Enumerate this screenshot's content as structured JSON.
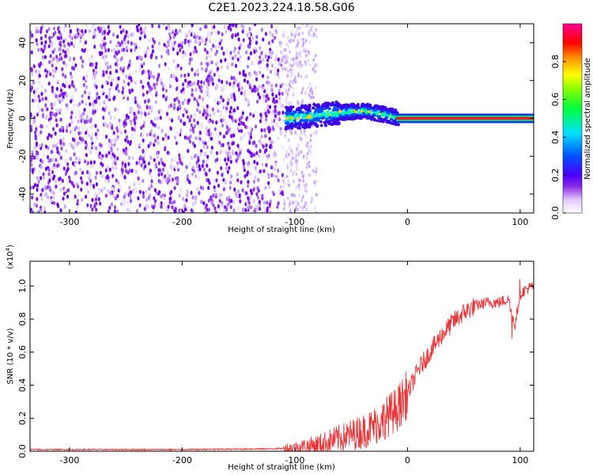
{
  "title": "C2E1.2023.224.18.58.G06",
  "chart_data": [
    {
      "type": "heatmap",
      "title": "C2E1.2023.224.18.58.G06",
      "xlabel": "Height of straight line (km)",
      "ylabel": "Frequency (Hz)",
      "xlim": [
        -335,
        112
      ],
      "ylim": [
        -50,
        50
      ],
      "x_ticks": [
        -300,
        -200,
        -100,
        0,
        100
      ],
      "y_ticks": [
        -40,
        -20,
        0,
        20,
        40
      ],
      "grid": false,
      "description_points": {
        "noise_region_x": [
          -335,
          -110
        ],
        "signal_start_x": -110,
        "signal_center_freq": [
          [
            -105,
            0
          ],
          [
            -90,
            1
          ],
          [
            -75,
            2
          ],
          [
            -60,
            3
          ],
          [
            -50,
            3.5
          ],
          [
            -40,
            4
          ],
          [
            -30,
            3
          ],
          [
            -20,
            2
          ],
          [
            -10,
            0.5
          ],
          [
            0,
            0
          ],
          [
            50,
            0
          ],
          [
            112,
            0
          ]
        ],
        "peak_amplitude_after_x": 0
      },
      "colorbar": {
        "label": "Normalized spectral amplitude",
        "ticks": [
          0.0,
          0.2,
          0.4,
          0.6,
          0.8
        ],
        "range": [
          0,
          1
        ]
      },
      "colorbar_label": "Normalized spectral amplitude"
    },
    {
      "type": "line",
      "xlabel": "Height of straight line (km)",
      "ylabel": "SNR (10 * v/v)",
      "y_exponent_label": "(x10",
      "y_exponent": "4",
      "y_exponent_close": ")",
      "xlim": [
        -335,
        112
      ],
      "ylim": [
        0,
        1.15
      ],
      "x_ticks": [
        -300,
        -200,
        -100,
        0,
        100
      ],
      "y_ticks": [
        "0.0",
        "0.2",
        "0.4",
        "0.6",
        "0.8",
        "1.0"
      ],
      "color": "#e8383b",
      "series": [
        {
          "x": [
            -335,
            -200,
            -120,
            -100,
            -80,
            -60,
            -40,
            -30,
            -20,
            -10,
            0,
            10,
            20,
            30,
            40,
            50,
            60,
            70,
            80,
            90,
            95,
            100,
            105,
            112
          ],
          "y": [
            0.01,
            0.01,
            0.015,
            0.02,
            0.04,
            0.08,
            0.12,
            0.15,
            0.2,
            0.25,
            0.35,
            0.5,
            0.6,
            0.7,
            0.78,
            0.84,
            0.88,
            0.9,
            0.9,
            0.92,
            0.75,
            0.95,
            0.98,
            1.0
          ]
        }
      ]
    }
  ]
}
